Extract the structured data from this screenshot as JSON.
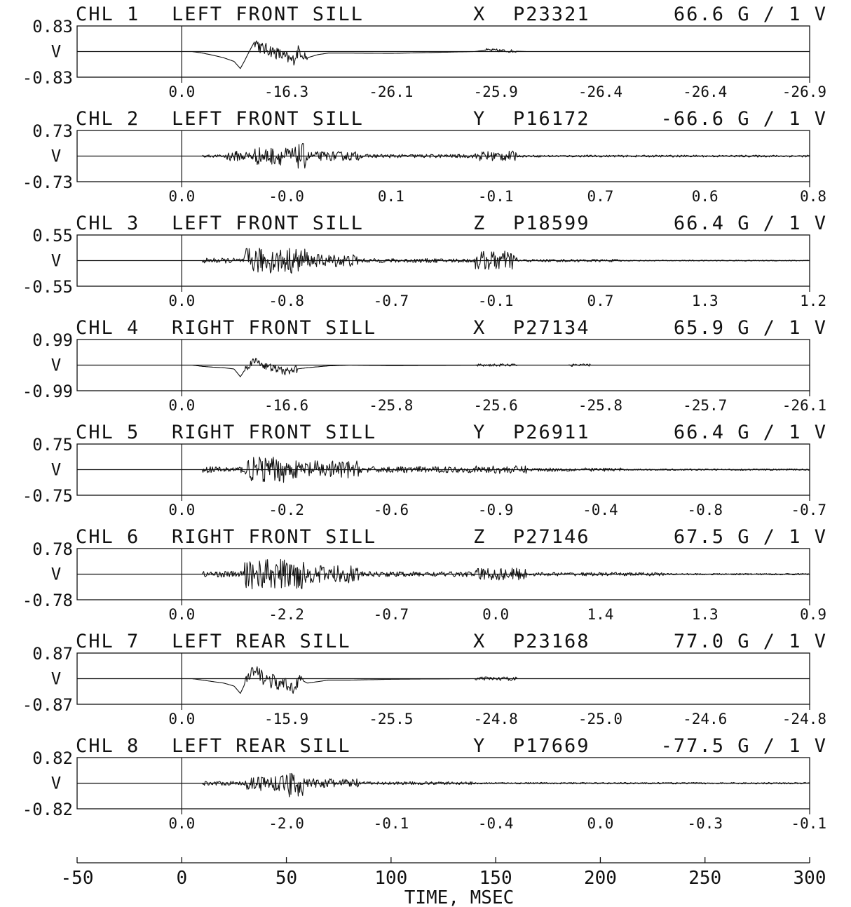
{
  "chart_data": {
    "type": "line",
    "x_unit_label": "TIME, MSEC",
    "xlim": [
      -50,
      300
    ],
    "x_ticks": [
      -50,
      0,
      50,
      100,
      150,
      200,
      250,
      300
    ],
    "y_unit": "V",
    "channels": [
      {
        "channel": "CHL 1",
        "location": "LEFT FRONT SILL",
        "axis": "X",
        "sensor": "P23321",
        "sensitivity": "66.6 G / 1 V",
        "ylim_label_top": "0.83",
        "ylim_label_bottom": "-0.83",
        "ylim": [
          -0.83,
          0.83
        ],
        "segment_values": [
          "0.0",
          "-16.3",
          "-26.1",
          "-25.9",
          "-26.4",
          "-26.4",
          "-26.9"
        ],
        "trace": [
          [
            5,
            0
          ],
          [
            10,
            -0.05
          ],
          [
            15,
            -0.12
          ],
          [
            20,
            -0.2
          ],
          [
            25,
            -0.32
          ],
          [
            28,
            -0.55
          ],
          [
            30,
            -0.3
          ],
          [
            33,
            0.1
          ],
          [
            35,
            0.35
          ],
          [
            38,
            0.1
          ],
          [
            42,
            0.05
          ],
          [
            47,
            -0.1
          ],
          [
            50,
            -0.2
          ],
          [
            53,
            -0.3
          ],
          [
            56,
            0.05
          ],
          [
            60,
            -0.2
          ],
          [
            65,
            -0.1
          ],
          [
            70,
            -0.05
          ],
          [
            80,
            -0.05
          ],
          [
            100,
            -0.06
          ],
          [
            120,
            -0.03
          ],
          [
            140,
            0.0
          ],
          [
            145,
            0.05
          ],
          [
            150,
            0.04
          ],
          [
            155,
            0.02
          ],
          [
            165,
            0.0
          ],
          [
            200,
            0.0
          ],
          [
            300,
            0.0
          ]
        ],
        "noise": [
          [
            35,
            60,
            0.25
          ],
          [
            145,
            160,
            0.06
          ]
        ]
      },
      {
        "channel": "CHL 2",
        "location": "LEFT FRONT SILL",
        "axis": "Y",
        "sensor": "P16172",
        "sensitivity": "-66.6 G / 1 V",
        "ylim_label_top": "0.73",
        "ylim_label_bottom": "-0.73",
        "ylim": [
          -0.73,
          0.73
        ],
        "segment_values": [
          "0.0",
          "-0.0",
          "0.1",
          "-0.1",
          "0.7",
          "0.6",
          "0.8"
        ],
        "trace": [
          [
            10,
            0
          ],
          [
            300,
            0
          ]
        ],
        "noise": [
          [
            10,
            20,
            0.05
          ],
          [
            20,
            35,
            0.2
          ],
          [
            35,
            55,
            0.35
          ],
          [
            55,
            60,
            0.5
          ],
          [
            60,
            85,
            0.18
          ],
          [
            85,
            140,
            0.07
          ],
          [
            140,
            160,
            0.2
          ],
          [
            160,
            300,
            0.04
          ]
        ]
      },
      {
        "channel": "CHL 3",
        "location": "LEFT FRONT SILL",
        "axis": "Z",
        "sensor": "P18599",
        "sensitivity": "66.4 G / 1 V",
        "ylim_label_top": "0.55",
        "ylim_label_bottom": "-0.55",
        "ylim": [
          -0.55,
          0.55
        ],
        "segment_values": [
          "0.0",
          "-0.8",
          "-0.7",
          "-0.1",
          "0.7",
          "1.3",
          "1.2"
        ],
        "trace": [
          [
            10,
            0
          ],
          [
            300,
            0
          ]
        ],
        "noise": [
          [
            10,
            30,
            0.1
          ],
          [
            30,
            60,
            0.5
          ],
          [
            60,
            85,
            0.25
          ],
          [
            85,
            140,
            0.08
          ],
          [
            140,
            160,
            0.38
          ],
          [
            160,
            210,
            0.05
          ],
          [
            210,
            300,
            0.02
          ]
        ]
      },
      {
        "channel": "CHL 4",
        "location": "RIGHT FRONT SILL",
        "axis": "X",
        "sensor": "P27134",
        "sensitivity": "65.9 G / 1 V",
        "ylim_label_top": "0.99",
        "ylim_label_bottom": "-0.99",
        "ylim": [
          -0.99,
          0.99
        ],
        "segment_values": [
          "0.0",
          "-16.6",
          "-25.8",
          "-25.6",
          "-25.8",
          "-25.7",
          "-26.1"
        ],
        "trace": [
          [
            5,
            0
          ],
          [
            10,
            -0.05
          ],
          [
            15,
            -0.08
          ],
          [
            20,
            -0.1
          ],
          [
            25,
            -0.15
          ],
          [
            28,
            -0.45
          ],
          [
            30,
            -0.2
          ],
          [
            33,
            0.1
          ],
          [
            36,
            0.18
          ],
          [
            40,
            -0.05
          ],
          [
            45,
            -0.15
          ],
          [
            50,
            -0.25
          ],
          [
            55,
            -0.15
          ],
          [
            60,
            -0.1
          ],
          [
            70,
            -0.03
          ],
          [
            80,
            0.0
          ],
          [
            100,
            -0.02
          ],
          [
            150,
            0.0
          ],
          [
            300,
            0.0
          ]
        ],
        "noise": [
          [
            30,
            55,
            0.15
          ],
          [
            140,
            160,
            0.05
          ],
          [
            185,
            195,
            0.05
          ]
        ]
      },
      {
        "channel": "CHL 5",
        "location": "RIGHT FRONT SILL",
        "axis": "Y",
        "sensor": "P26911",
        "sensitivity": "66.4 G / 1 V",
        "ylim_label_top": "0.75",
        "ylim_label_bottom": "-0.75",
        "ylim": [
          -0.75,
          0.75
        ],
        "segment_values": [
          "0.0",
          "-0.2",
          "-0.6",
          "-0.9",
          "-0.4",
          "-0.8",
          "-0.7"
        ],
        "trace": [
          [
            10,
            0
          ],
          [
            300,
            0
          ]
        ],
        "noise": [
          [
            10,
            30,
            0.12
          ],
          [
            30,
            50,
            0.5
          ],
          [
            50,
            85,
            0.35
          ],
          [
            85,
            140,
            0.12
          ],
          [
            140,
            165,
            0.15
          ],
          [
            165,
            210,
            0.07
          ],
          [
            210,
            300,
            0.03
          ]
        ]
      },
      {
        "channel": "CHL 6",
        "location": "RIGHT FRONT SILL",
        "axis": "Z",
        "sensor": "P27146",
        "sensitivity": "67.5 G / 1 V",
        "ylim_label_top": "0.78",
        "ylim_label_bottom": "-0.78",
        "ylim": [
          -0.78,
          0.78
        ],
        "segment_values": [
          "0.0",
          "-2.2",
          "-0.7",
          "0.0",
          "1.4",
          "1.3",
          "0.9"
        ],
        "trace": [
          [
            10,
            0
          ],
          [
            300,
            0
          ]
        ],
        "noise": [
          [
            10,
            30,
            0.12
          ],
          [
            30,
            60,
            0.6
          ],
          [
            60,
            85,
            0.35
          ],
          [
            85,
            140,
            0.1
          ],
          [
            140,
            165,
            0.25
          ],
          [
            165,
            230,
            0.07
          ],
          [
            230,
            300,
            0.03
          ]
        ]
      },
      {
        "channel": "CHL 7",
        "location": "LEFT REAR SILL",
        "axis": "X",
        "sensor": "P23168",
        "sensitivity": "77.0 G / 1 V",
        "ylim_label_top": "0.87",
        "ylim_label_bottom": "-0.87",
        "ylim": [
          -0.87,
          0.87
        ],
        "segment_values": [
          "0.0",
          "-15.9",
          "-25.5",
          "-24.8",
          "-25.0",
          "-24.6",
          "-24.8"
        ],
        "trace": [
          [
            5,
            0
          ],
          [
            10,
            -0.05
          ],
          [
            20,
            -0.15
          ],
          [
            25,
            -0.25
          ],
          [
            28,
            -0.5
          ],
          [
            30,
            -0.2
          ],
          [
            33,
            0.15
          ],
          [
            36,
            0.2
          ],
          [
            40,
            0.0
          ],
          [
            45,
            -0.15
          ],
          [
            50,
            -0.25
          ],
          [
            53,
            -0.3
          ],
          [
            56,
            0.0
          ],
          [
            60,
            -0.15
          ],
          [
            70,
            -0.05
          ],
          [
            80,
            -0.05
          ],
          [
            100,
            -0.02
          ],
          [
            140,
            0.0
          ],
          [
            300,
            0.0
          ]
        ],
        "noise": [
          [
            30,
            58,
            0.3
          ],
          [
            140,
            160,
            0.07
          ]
        ]
      },
      {
        "channel": "CHL 8",
        "location": "LEFT REAR SILL",
        "axis": "Y",
        "sensor": "P17669",
        "sensitivity": "-77.5 G / 1 V",
        "ylim_label_top": "0.82",
        "ylim_label_bottom": "-0.82",
        "ylim": [
          -0.82,
          0.82
        ],
        "segment_values": [
          "0.0",
          "-2.0",
          "-0.1",
          "-0.4",
          "0.0",
          "-0.3",
          "-0.1"
        ],
        "trace": [
          [
            10,
            0
          ],
          [
            300,
            0
          ]
        ],
        "noise": [
          [
            10,
            30,
            0.08
          ],
          [
            30,
            50,
            0.3
          ],
          [
            50,
            58,
            0.55
          ],
          [
            58,
            85,
            0.18
          ],
          [
            85,
            140,
            0.06
          ],
          [
            140,
            300,
            0.03
          ]
        ]
      }
    ]
  }
}
